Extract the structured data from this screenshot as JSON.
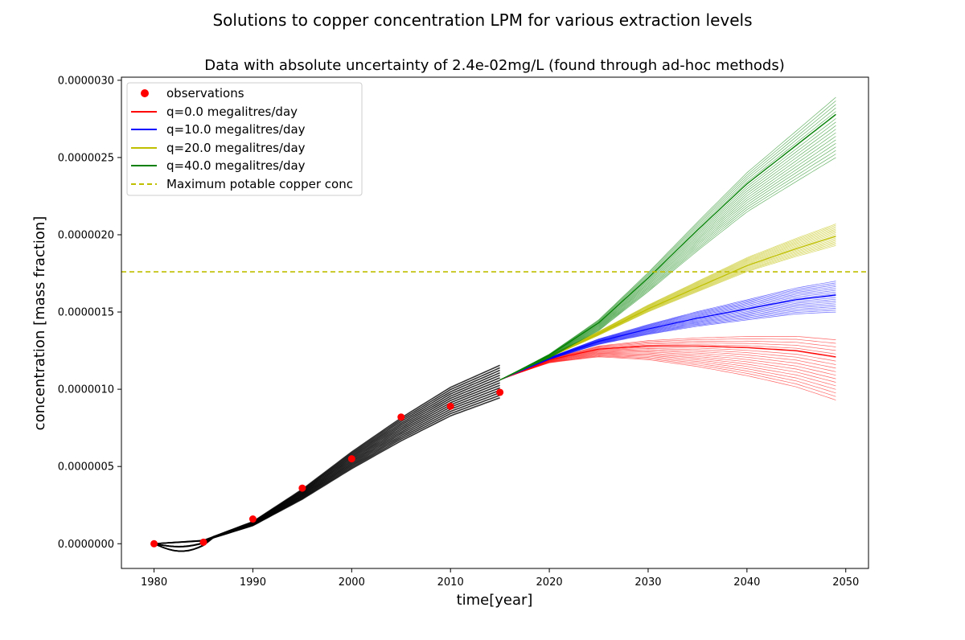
{
  "chart_data": {
    "type": "line",
    "suptitle": "Solutions to copper concentration LPM for various extraction levels",
    "title": "Data with absolute uncertainty of 2.4e-02mg/L (found through ad-hoc methods)",
    "xlabel": "time[year]",
    "ylabel": "concentration [mass fraction]",
    "xlim": [
      1976.7,
      2052.3
    ],
    "ylim": [
      -1.6e-07,
      3.02e-06
    ],
    "xticks": [
      1980,
      1990,
      2000,
      2010,
      2020,
      2030,
      2040,
      2050
    ],
    "yticks": [
      0.0,
      5e-07,
      1e-06,
      1.5e-06,
      2e-06,
      2.5e-06,
      3e-06
    ],
    "ytick_labels": [
      "0.0000000",
      "0.0000005",
      "0.0000010",
      "0.0000015",
      "0.0000020",
      "0.0000025",
      "0.0000030"
    ],
    "legend_position": "top-left",
    "grid": false,
    "observations": {
      "name": "observations",
      "color": "#ff0000",
      "x": [
        1980,
        1985,
        1990,
        1995,
        2000,
        2005,
        2010,
        2015
      ],
      "y": [
        0.0,
        1e-08,
        1.6e-07,
        3.6e-07,
        5.5e-07,
        8.2e-07,
        8.9e-07,
        9.8e-07
      ]
    },
    "calibration": {
      "color": "#000000",
      "x": [
        1980,
        1985,
        1990,
        1995,
        2000,
        2005,
        2010,
        2015
      ],
      "y": [
        0.0,
        2e-08,
        1.3e-07,
        3.2e-07,
        5.4e-07,
        7.4e-07,
        9.2e-07,
        1.05e-06
      ]
    },
    "series": [
      {
        "name": "q=0.0 megalitres/day",
        "color": "#ff0000",
        "x": [
          2015,
          2020,
          2025,
          2030,
          2035,
          2040,
          2045,
          2049
        ],
        "y": [
          1.06e-06,
          1.19e-06,
          1.26e-06,
          1.28e-06,
          1.28e-06,
          1.27e-06,
          1.25e-06,
          1.21e-06
        ],
        "end_spread": [
          9.3e-07,
          1.32e-06
        ]
      },
      {
        "name": "q=10.0 megalitres/day",
        "color": "#0000ff",
        "x": [
          2015,
          2020,
          2025,
          2030,
          2035,
          2040,
          2045,
          2049
        ],
        "y": [
          1.06e-06,
          1.2e-06,
          1.31e-06,
          1.39e-06,
          1.46e-06,
          1.52e-06,
          1.58e-06,
          1.61e-06
        ],
        "end_spread": [
          1.5e-06,
          1.7e-06
        ]
      },
      {
        "name": "q=20.0 megalitres/day",
        "color": "#bfbf00",
        "x": [
          2015,
          2020,
          2025,
          2030,
          2035,
          2040,
          2045,
          2049
        ],
        "y": [
          1.06e-06,
          1.21e-06,
          1.36e-06,
          1.52e-06,
          1.66e-06,
          1.8e-06,
          1.91e-06,
          1.99e-06
        ],
        "end_spread": [
          1.93e-06,
          2.07e-06
        ]
      },
      {
        "name": "q=40.0 megalitres/day",
        "color": "#008000",
        "x": [
          2015,
          2020,
          2025,
          2030,
          2035,
          2040,
          2045,
          2049
        ],
        "y": [
          1.06e-06,
          1.22e-06,
          1.43e-06,
          1.72e-06,
          2.03e-06,
          2.33e-06,
          2.58e-06,
          2.78e-06
        ],
        "end_spread": [
          2.5e-06,
          2.89e-06
        ]
      }
    ],
    "threshold": {
      "name": "Maximum potable copper conc",
      "color": "#bfbf00",
      "y": 1.76e-06
    }
  }
}
